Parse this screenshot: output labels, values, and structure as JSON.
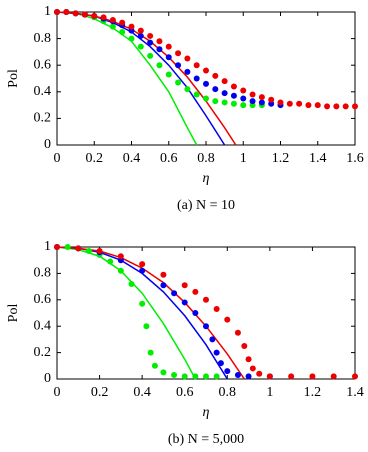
{
  "chart_data": [
    {
      "type": "scatter",
      "ylabel": "Pol",
      "xlabel": "η",
      "caption": "(a) N = 10",
      "xlim": [
        0,
        1.6
      ],
      "xticks": [
        0,
        0.2,
        0.4,
        0.6,
        0.8,
        1,
        1.2,
        1.4,
        1.6
      ],
      "ylim": [
        0,
        1
      ],
      "yticks": [
        0,
        0.2,
        0.4,
        0.6,
        0.8,
        1
      ],
      "series": [
        {
          "mode": "markers",
          "color": "#00ee00",
          "x": [
            0,
            0.05,
            0.1,
            0.15,
            0.2,
            0.25,
            0.3,
            0.35,
            0.4,
            0.45,
            0.5,
            0.55,
            0.6,
            0.65,
            0.7,
            0.75,
            0.8,
            0.85,
            0.9,
            0.95,
            1,
            1.05,
            1.1
          ],
          "values": [
            1,
            1,
            0.99,
            0.98,
            0.96,
            0.93,
            0.89,
            0.85,
            0.8,
            0.74,
            0.67,
            0.6,
            0.53,
            0.47,
            0.42,
            0.38,
            0.35,
            0.33,
            0.32,
            0.31,
            0.3,
            0.3,
            0.3
          ]
        },
        {
          "mode": "markers",
          "color": "#0000ee",
          "x": [
            0,
            0.05,
            0.1,
            0.15,
            0.2,
            0.25,
            0.3,
            0.35,
            0.4,
            0.45,
            0.5,
            0.55,
            0.6,
            0.65,
            0.7,
            0.75,
            0.8,
            0.85,
            0.9,
            0.95,
            1,
            1.05,
            1.1,
            1.15,
            1.2
          ],
          "values": [
            1,
            1,
            0.99,
            0.98,
            0.97,
            0.95,
            0.93,
            0.9,
            0.86,
            0.82,
            0.77,
            0.72,
            0.66,
            0.6,
            0.55,
            0.5,
            0.46,
            0.42,
            0.39,
            0.37,
            0.35,
            0.33,
            0.32,
            0.31,
            0.3
          ]
        },
        {
          "mode": "markers",
          "color": "#ee0000",
          "x": [
            0,
            0.05,
            0.1,
            0.15,
            0.2,
            0.25,
            0.3,
            0.35,
            0.4,
            0.45,
            0.5,
            0.55,
            0.6,
            0.65,
            0.7,
            0.75,
            0.8,
            0.85,
            0.9,
            0.95,
            1,
            1.05,
            1.1,
            1.15,
            1.2,
            1.25,
            1.3,
            1.35,
            1.4,
            1.45,
            1.5,
            1.55,
            1.6
          ],
          "values": [
            1,
            1,
            0.99,
            0.98,
            0.97,
            0.96,
            0.94,
            0.92,
            0.89,
            0.86,
            0.82,
            0.78,
            0.74,
            0.69,
            0.65,
            0.6,
            0.56,
            0.52,
            0.48,
            0.44,
            0.41,
            0.38,
            0.36,
            0.34,
            0.32,
            0.31,
            0.31,
            0.3,
            0.3,
            0.29,
            0.29,
            0.29,
            0.29
          ]
        },
        {
          "mode": "line",
          "color": "#00ee00",
          "x": [
            0,
            0.1,
            0.2,
            0.3,
            0.4,
            0.5,
            0.6,
            0.7,
            0.75
          ],
          "values": [
            1,
            0.99,
            0.95,
            0.88,
            0.78,
            0.6,
            0.4,
            0.13,
            0
          ]
        },
        {
          "mode": "line",
          "color": "#0000ee",
          "x": [
            0,
            0.1,
            0.2,
            0.3,
            0.4,
            0.5,
            0.6,
            0.7,
            0.8,
            0.9
          ],
          "values": [
            1,
            0.99,
            0.97,
            0.92,
            0.85,
            0.74,
            0.6,
            0.43,
            0.22,
            0
          ]
        },
        {
          "mode": "line",
          "color": "#ee0000",
          "x": [
            0,
            0.1,
            0.2,
            0.3,
            0.4,
            0.5,
            0.6,
            0.7,
            0.8,
            0.9,
            0.96
          ],
          "values": [
            1,
            0.99,
            0.97,
            0.93,
            0.87,
            0.78,
            0.66,
            0.51,
            0.33,
            0.13,
            0
          ]
        }
      ]
    },
    {
      "type": "scatter",
      "ylabel": "Pol",
      "xlabel": "η",
      "caption": "(b) N = 5,000",
      "xlim": [
        0,
        1.4
      ],
      "xticks": [
        0,
        0.2,
        0.4,
        0.6,
        0.8,
        1,
        1.2,
        1.4
      ],
      "ylim": [
        0,
        1
      ],
      "yticks": [
        0,
        0.2,
        0.4,
        0.6,
        0.8,
        1
      ],
      "series": [
        {
          "mode": "markers",
          "color": "#00ee00",
          "x": [
            0,
            0.05,
            0.1,
            0.15,
            0.2,
            0.25,
            0.3,
            0.35,
            0.4,
            0.42,
            0.44,
            0.46,
            0.5,
            0.55,
            0.6,
            0.65,
            0.7,
            0.75
          ],
          "values": [
            1,
            1,
            0.99,
            0.97,
            0.94,
            0.89,
            0.82,
            0.72,
            0.57,
            0.4,
            0.2,
            0.1,
            0.05,
            0.03,
            0.02,
            0.02,
            0.02,
            0.02
          ]
        },
        {
          "mode": "markers",
          "color": "#0000ee",
          "x": [
            0,
            0.1,
            0.2,
            0.3,
            0.4,
            0.5,
            0.55,
            0.6,
            0.65,
            0.7,
            0.73,
            0.75,
            0.77,
            0.8,
            0.85,
            0.9,
            1
          ],
          "values": [
            1,
            0.99,
            0.96,
            0.9,
            0.82,
            0.71,
            0.65,
            0.58,
            0.5,
            0.4,
            0.3,
            0.2,
            0.12,
            0.06,
            0.03,
            0.02,
            0.02
          ]
        },
        {
          "mode": "markers",
          "color": "#ee0000",
          "x": [
            0,
            0.1,
            0.2,
            0.3,
            0.4,
            0.5,
            0.6,
            0.65,
            0.7,
            0.75,
            0.8,
            0.85,
            0.88,
            0.9,
            0.92,
            0.95,
            1,
            1.1,
            1.2,
            1.3,
            1.4
          ],
          "values": [
            1,
            0.99,
            0.97,
            0.93,
            0.87,
            0.79,
            0.71,
            0.66,
            0.6,
            0.53,
            0.45,
            0.35,
            0.25,
            0.15,
            0.08,
            0.04,
            0.02,
            0.02,
            0.02,
            0.02,
            0.02
          ]
        },
        {
          "mode": "line",
          "color": "#00ee00",
          "x": [
            0,
            0.1,
            0.2,
            0.3,
            0.4,
            0.5,
            0.6,
            0.65
          ],
          "values": [
            1,
            0.98,
            0.93,
            0.82,
            0.65,
            0.42,
            0.15,
            0
          ]
        },
        {
          "mode": "line",
          "color": "#0000ee",
          "x": [
            0,
            0.1,
            0.2,
            0.3,
            0.4,
            0.5,
            0.6,
            0.7,
            0.8
          ],
          "values": [
            1,
            0.99,
            0.96,
            0.9,
            0.8,
            0.66,
            0.48,
            0.26,
            0
          ]
        },
        {
          "mode": "line",
          "color": "#ee0000",
          "x": [
            0,
            0.1,
            0.2,
            0.3,
            0.4,
            0.5,
            0.6,
            0.7,
            0.8,
            0.88
          ],
          "values": [
            1,
            0.99,
            0.97,
            0.92,
            0.84,
            0.73,
            0.58,
            0.4,
            0.19,
            0
          ]
        }
      ]
    }
  ]
}
